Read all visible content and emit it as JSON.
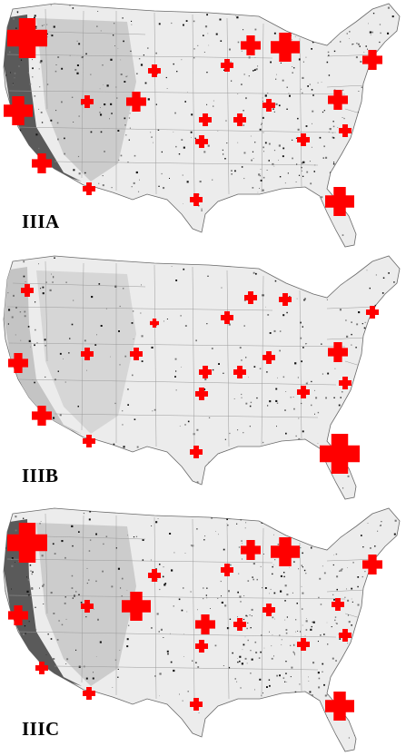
{
  "figure": {
    "panels": [
      {
        "label": "IIIA",
        "markers": [
          {
            "id": "seattle",
            "size": "xl"
          },
          {
            "id": "n-cal",
            "size": "lg"
          },
          {
            "id": "la",
            "size": "md"
          },
          {
            "id": "san-diego",
            "size": "sm"
          },
          {
            "id": "salt-lake",
            "size": "md"
          },
          {
            "id": "boise",
            "size": "sm"
          },
          {
            "id": "bismarck",
            "size": "sm"
          },
          {
            "id": "denver",
            "size": "sm"
          },
          {
            "id": "kansas-city",
            "size": "sm"
          },
          {
            "id": "dallas",
            "size": "sm"
          },
          {
            "id": "minneapolis",
            "size": "sm"
          },
          {
            "id": "chicago",
            "size": "sm"
          },
          {
            "id": "great-lakes-w",
            "size": "md"
          },
          {
            "id": "great-lakes-e",
            "size": "lg"
          },
          {
            "id": "detroit",
            "size": "sm"
          },
          {
            "id": "new-york",
            "size": "md"
          },
          {
            "id": "boston",
            "size": "md"
          },
          {
            "id": "washington",
            "size": "sm"
          },
          {
            "id": "atlanta",
            "size": "sm"
          },
          {
            "id": "florida",
            "size": "lg"
          }
        ]
      },
      {
        "label": "IIIB",
        "markers": [
          {
            "id": "seattle",
            "size": "sm"
          },
          {
            "id": "n-cal",
            "size": "md"
          },
          {
            "id": "la",
            "size": "md"
          },
          {
            "id": "san-diego",
            "size": "sm"
          },
          {
            "id": "salt-lake",
            "size": "sm"
          },
          {
            "id": "boise",
            "size": "sm"
          },
          {
            "id": "bismarck",
            "size": "xs"
          },
          {
            "id": "denver",
            "size": "sm"
          },
          {
            "id": "kansas-city",
            "size": "sm"
          },
          {
            "id": "dallas",
            "size": "sm"
          },
          {
            "id": "minneapolis",
            "size": "sm"
          },
          {
            "id": "chicago",
            "size": "sm"
          },
          {
            "id": "great-lakes-w",
            "size": "sm"
          },
          {
            "id": "great-lakes-e",
            "size": "sm"
          },
          {
            "id": "detroit",
            "size": "sm"
          },
          {
            "id": "new-york",
            "size": "md"
          },
          {
            "id": "boston",
            "size": "sm"
          },
          {
            "id": "washington",
            "size": "sm"
          },
          {
            "id": "atlanta",
            "size": "sm"
          },
          {
            "id": "florida",
            "size": "xl"
          }
        ]
      },
      {
        "label": "IIIC",
        "markers": [
          {
            "id": "seattle",
            "size": "xl"
          },
          {
            "id": "n-cal",
            "size": "md"
          },
          {
            "id": "la",
            "size": "sm"
          },
          {
            "id": "san-diego",
            "size": "sm"
          },
          {
            "id": "salt-lake",
            "size": "lg"
          },
          {
            "id": "boise",
            "size": "sm"
          },
          {
            "id": "bismarck",
            "size": "sm"
          },
          {
            "id": "denver",
            "size": "md"
          },
          {
            "id": "kansas-city",
            "size": "sm"
          },
          {
            "id": "dallas",
            "size": "sm"
          },
          {
            "id": "minneapolis",
            "size": "sm"
          },
          {
            "id": "chicago",
            "size": "sm"
          },
          {
            "id": "great-lakes-w",
            "size": "md"
          },
          {
            "id": "great-lakes-e",
            "size": "lg"
          },
          {
            "id": "detroit",
            "size": "sm"
          },
          {
            "id": "new-york",
            "size": "sm"
          },
          {
            "id": "boston",
            "size": "md"
          },
          {
            "id": "washington",
            "size": "sm"
          },
          {
            "id": "atlanta",
            "size": "sm"
          },
          {
            "id": "florida",
            "size": "lg"
          }
        ]
      }
    ],
    "colors": {
      "marker": "#ff0000",
      "land_light": "#ececec",
      "land_mid": "#c4c4c4",
      "land_dark": "#5a5a5a",
      "forest": "#111111",
      "state_lines": "#9a9a9a",
      "coast": "#6a6a6a"
    }
  }
}
